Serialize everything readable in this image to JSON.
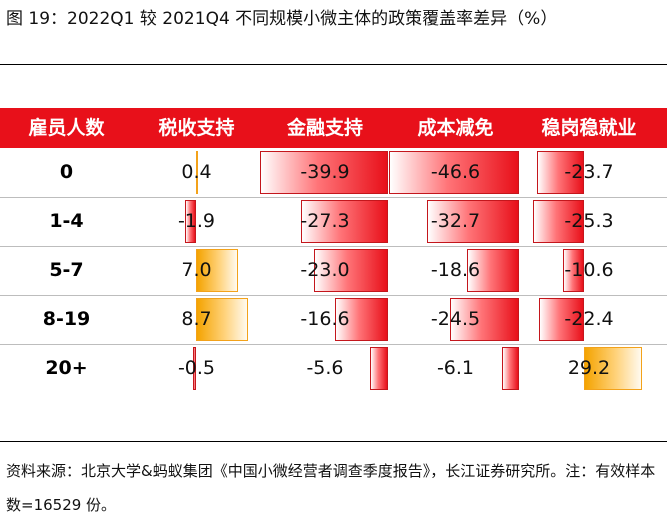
{
  "title": "图 19：2022Q1 较 2021Q4 不同规模小微主体的政策覆盖率差异（%）",
  "source": "资料来源：北京大学&蚂蚁集团《中国小微经营者调查季度报告》，长江证券研究所。注：有效样本数=16529 份。",
  "colors": {
    "header_bg": "#e8101a",
    "negative": "#e8101a",
    "positive": "#f4a300"
  },
  "chart_data": {
    "type": "table",
    "row_header": "雇员人数",
    "columns": [
      "税收支持",
      "金融支持",
      "成本减免",
      "稳岗稳就业"
    ],
    "rows": [
      {
        "label": "0",
        "values": [
          0.4,
          -39.9,
          -46.6,
          -23.7
        ]
      },
      {
        "label": "1-4",
        "values": [
          -1.9,
          -27.3,
          -32.7,
          -25.3
        ]
      },
      {
        "label": "5-7",
        "values": [
          7.0,
          -23.0,
          -18.6,
          -10.6
        ]
      },
      {
        "label": "8-19",
        "values": [
          8.7,
          -16.6,
          -24.5,
          -22.4
        ]
      },
      {
        "label": "20+",
        "values": [
          -0.5,
          -5.6,
          -6.1,
          29.2
        ]
      }
    ],
    "value_labels": [
      [
        "0.4",
        "-39.9",
        "-46.6",
        "-23.7"
      ],
      [
        "-1.9",
        "-27.3",
        "-32.7",
        "-25.3"
      ],
      [
        "7.0",
        "-23.0",
        "-18.6",
        "-10.6"
      ],
      [
        "8.7",
        "-16.6",
        "-24.5",
        "-22.4"
      ],
      [
        "-0.5",
        "-5.6",
        "-6.1",
        "29.2"
      ]
    ]
  }
}
